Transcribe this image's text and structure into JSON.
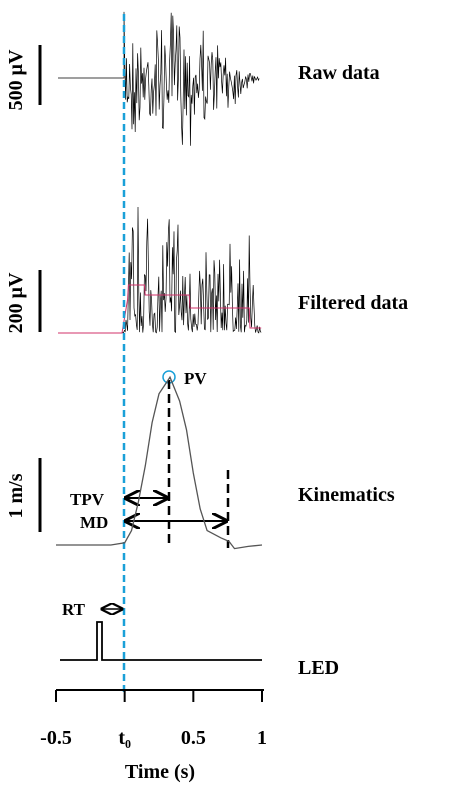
{
  "chart_data": {
    "type": "line",
    "xlabel": "Time (s)",
    "xlim": [
      -0.5,
      1
    ],
    "xticks": [
      -0.5,
      {
        "value": 0,
        "label": "t₀"
      },
      0.5,
      1
    ],
    "panels": [
      {
        "label": "Raw data",
        "scale_label": "500 μV"
      },
      {
        "label": "Filtered data",
        "scale_label": "200 μV"
      },
      {
        "label": "Kinematics",
        "scale_label": "1 m/s"
      },
      {
        "label": "LED"
      }
    ],
    "annotations": [
      "PV",
      "TPV",
      "MD",
      "RT"
    ],
    "x": [
      -0.5,
      -0.2,
      -0.1,
      0,
      0.05,
      0.1,
      0.15,
      0.2,
      0.25,
      0.33,
      0.4,
      0.45,
      0.5,
      0.55,
      0.6,
      0.7,
      0.76,
      0.8,
      0.9,
      1.0
    ],
    "series": [
      {
        "color": "#555555",
        "values": [
          0,
          0,
          0,
          0.03,
          0.2,
          0.6,
          1.1,
          1.7,
          2.1,
          2.33,
          2.0,
          1.6,
          1.0,
          0.5,
          0.2,
          0.1,
          0.05,
          -0.05,
          -0.02,
          0
        ]
      }
    ]
  }
}
